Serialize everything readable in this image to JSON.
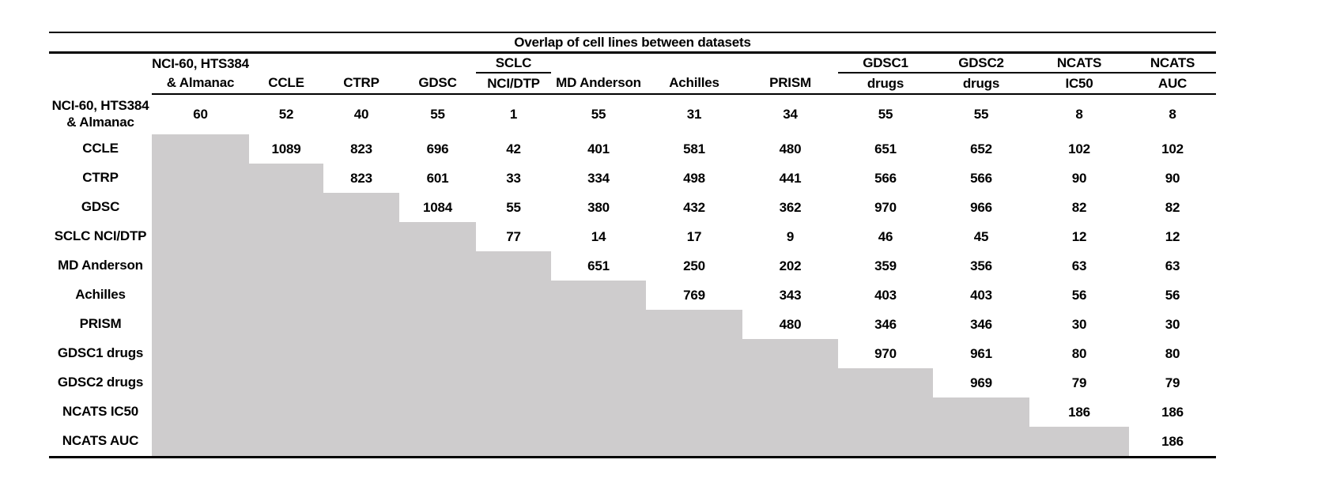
{
  "chart_data": {
    "type": "table",
    "title": "Overlap of cell lines between datasets",
    "shaded_lower_triangle_color": "#cecccd",
    "columns": [
      {
        "header_top": "NCI-60, HTS384",
        "header_bottom": "& Almanac",
        "group_rule": false,
        "align": "left"
      },
      {
        "header_top": "",
        "header_bottom": "CCLE",
        "group_rule": false,
        "align": "center"
      },
      {
        "header_top": "",
        "header_bottom": "CTRP",
        "group_rule": false,
        "align": "center"
      },
      {
        "header_top": "",
        "header_bottom": "GDSC",
        "group_rule": false,
        "align": "center"
      },
      {
        "header_top": "SCLC",
        "header_bottom": "NCI/DTP",
        "group_rule": true,
        "align": "center"
      },
      {
        "header_top": "",
        "header_bottom": "MD Anderson",
        "group_rule": false,
        "align": "center"
      },
      {
        "header_top": "",
        "header_bottom": "Achilles",
        "group_rule": false,
        "align": "center"
      },
      {
        "header_top": "",
        "header_bottom": "PRISM",
        "group_rule": false,
        "align": "center"
      },
      {
        "header_top": "GDSC1",
        "header_bottom": "drugs",
        "group_rule": true,
        "align": "center"
      },
      {
        "header_top": "GDSC2",
        "header_bottom": "drugs",
        "group_rule": true,
        "align": "center"
      },
      {
        "header_top": "NCATS",
        "header_bottom": "IC50",
        "group_rule": true,
        "align": "center"
      },
      {
        "header_top": "NCATS",
        "header_bottom": "AUC",
        "group_rule": true,
        "align": "center"
      }
    ],
    "rows": [
      {
        "label_lines": [
          "NCI-60, HTS384",
          "& Almanac"
        ],
        "values": [
          60,
          52,
          40,
          55,
          1,
          55,
          31,
          34,
          55,
          55,
          8,
          8
        ]
      },
      {
        "label_lines": [
          "CCLE"
        ],
        "values": [
          1089,
          823,
          696,
          42,
          401,
          581,
          480,
          651,
          652,
          102,
          102
        ]
      },
      {
        "label_lines": [
          "CTRP"
        ],
        "values": [
          823,
          601,
          33,
          334,
          498,
          441,
          566,
          566,
          90,
          90
        ]
      },
      {
        "label_lines": [
          "GDSC"
        ],
        "values": [
          1084,
          55,
          380,
          432,
          362,
          970,
          966,
          82,
          82
        ]
      },
      {
        "label_lines": [
          "SCLC NCI/DTP"
        ],
        "values": [
          77,
          14,
          17,
          9,
          46,
          45,
          12,
          12
        ]
      },
      {
        "label_lines": [
          "MD Anderson"
        ],
        "values": [
          651,
          250,
          202,
          359,
          356,
          63,
          63
        ]
      },
      {
        "label_lines": [
          "Achilles"
        ],
        "values": [
          769,
          343,
          403,
          403,
          56,
          56
        ]
      },
      {
        "label_lines": [
          "PRISM"
        ],
        "values": [
          480,
          346,
          346,
          30,
          30
        ]
      },
      {
        "label_lines": [
          "GDSC1 drugs"
        ],
        "values": [
          970,
          961,
          80,
          80
        ]
      },
      {
        "label_lines": [
          "GDSC2 drugs"
        ],
        "values": [
          969,
          79,
          79
        ]
      },
      {
        "label_lines": [
          "NCATS IC50"
        ],
        "values": [
          186,
          186
        ]
      },
      {
        "label_lines": [
          "NCATS AUC"
        ],
        "values": [
          186
        ]
      }
    ],
    "notes": "Upper-triangular overlap matrix; values[k] of row r belongs to column (r + k); cells below the diagonal are shaded gray."
  }
}
